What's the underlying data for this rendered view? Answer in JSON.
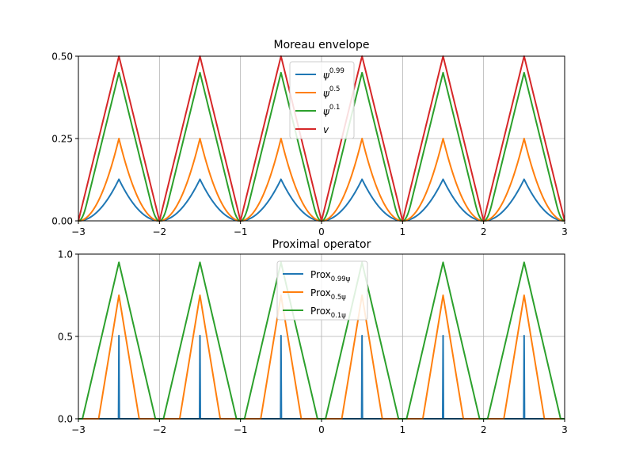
{
  "chart_data": [
    {
      "type": "line",
      "title": "Moreau envelope",
      "xlim": [
        -3,
        3
      ],
      "ylim": [
        0,
        0.5
      ],
      "xticks": [
        "−3",
        "−2",
        "−1",
        "0",
        "1",
        "2",
        "3"
      ],
      "yticks": [
        "0.00",
        "0.25",
        "0.50"
      ],
      "grid": true,
      "legend_position": "upper center",
      "series": [
        {
          "name": "ψ^0.99",
          "legend_base": "ψ",
          "legend_sup": "0.99",
          "color": "#1f77b4",
          "kind": "moreau",
          "lambda": 0.99
        },
        {
          "name": "ψ^0.5",
          "legend_base": "ψ",
          "legend_sup": "0.5",
          "color": "#ff7f0e",
          "kind": "moreau",
          "lambda": 0.5
        },
        {
          "name": "ψ^0.1",
          "legend_base": "ψ",
          "legend_sup": "0.1",
          "color": "#2ca02c",
          "kind": "moreau",
          "lambda": 0.1
        },
        {
          "name": "v",
          "legend_base": "v",
          "legend_sup": "",
          "color": "#d62728",
          "kind": "v",
          "lambda": 0
        }
      ]
    },
    {
      "type": "line",
      "title": "Proximal operator",
      "xlim": [
        -3,
        3
      ],
      "ylim": [
        0,
        1
      ],
      "xticks": [
        "−3",
        "−2",
        "−1",
        "0",
        "1",
        "2",
        "3"
      ],
      "yticks": [
        "0.0",
        "0.5",
        "1.0"
      ],
      "grid": true,
      "legend_position": "upper center",
      "series": [
        {
          "name": "Prox_0.99ψ",
          "legend_base": "Prox",
          "legend_sub": "0.99ψ",
          "color": "#1f77b4",
          "kind": "prox",
          "lambda": 0.99
        },
        {
          "name": "Prox_0.5ψ",
          "legend_base": "Prox",
          "legend_sub": "0.5ψ",
          "color": "#ff7f0e",
          "kind": "prox",
          "lambda": 0.5
        },
        {
          "name": "Prox_0.1ψ",
          "legend_base": "Prox",
          "legend_sub": "0.1ψ",
          "color": "#2ca02c",
          "kind": "prox",
          "lambda": 0.1
        }
      ]
    }
  ]
}
